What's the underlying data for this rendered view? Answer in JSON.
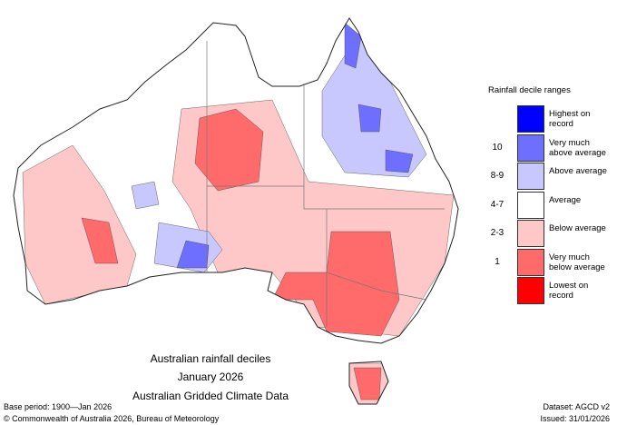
{
  "map": {
    "title_lines": [
      "Australian rainfall deciles",
      "January 2026",
      "Australian Gridded Climate Data"
    ],
    "legend": {
      "title": "Rainfall decile ranges",
      "items": [
        {
          "label": "Highest on record",
          "color": "#0000ff"
        },
        {
          "label": "Very much above average",
          "color": "#6e6eff",
          "range": "10"
        },
        {
          "label": "Above average",
          "color": "#c8c8ff",
          "range": "8-9"
        },
        {
          "label": "Average",
          "color": "#ffffff",
          "range": "4-7"
        },
        {
          "label": "Below average",
          "color": "#ffc8c8",
          "range": "2-3"
        },
        {
          "label": "Very much below average",
          "color": "#ff6a6a",
          "range": "1"
        },
        {
          "label": "Lowest on record",
          "color": "#ff0000"
        }
      ]
    },
    "footer": {
      "base_period": "Base period: 1900—Jan 2026",
      "dataset": "Dataset: AGCD v2",
      "copyright": "© Commonwealth of Australia 2026, Bureau of Meteorology",
      "issued": "Issued: 31/01/2026"
    }
  }
}
